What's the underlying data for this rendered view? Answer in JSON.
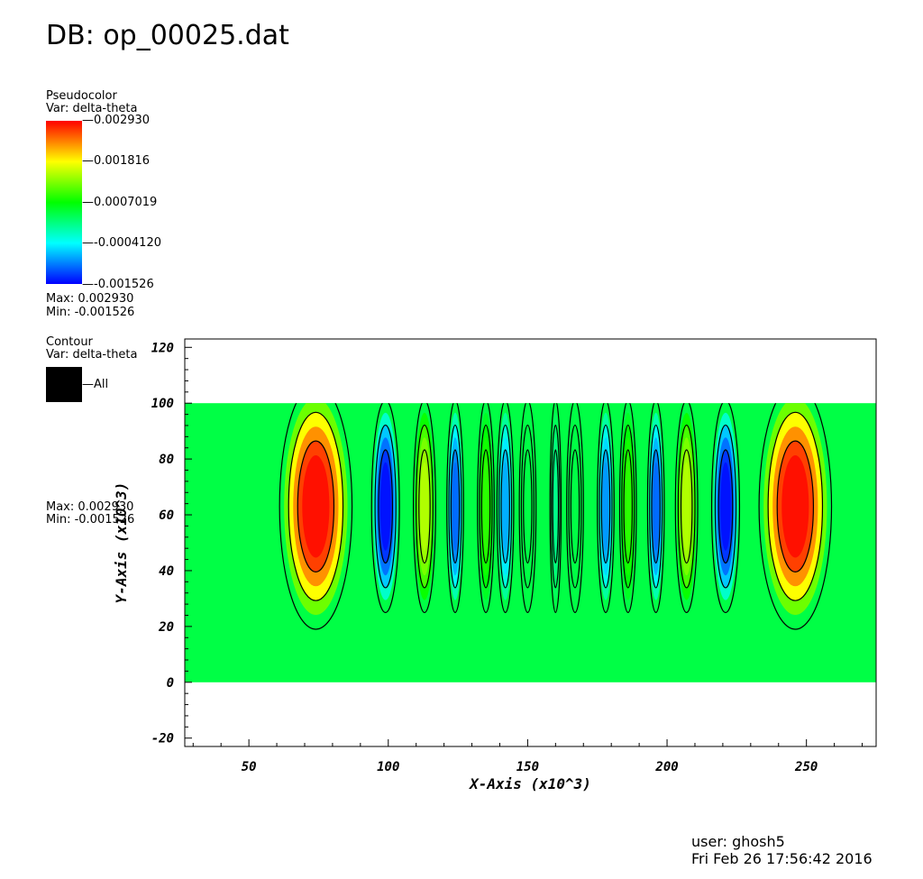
{
  "db_title": "DB: op_00025.dat",
  "pseudocolor": {
    "heading": "Pseudocolor",
    "var": "Var: delta-theta",
    "ticks": [
      "0.002930",
      "0.001816",
      "0.0007019",
      "-0.0004120",
      "-0.001526"
    ],
    "max": "Max:  0.002930",
    "min": "Min: -0.001526",
    "colors": [
      "#ff0000",
      "#ffff00",
      "#00ff00",
      "#00ffff",
      "#0000ff"
    ]
  },
  "contour": {
    "heading": "Contour",
    "var": "Var: delta-theta",
    "swatch_label": "All",
    "max": "Max:  0.002930",
    "min": "Min: -0.001526"
  },
  "footer": {
    "user": "user: ghosh5",
    "date": "Fri Feb 26 17:56:42 2016"
  },
  "chart_data": {
    "type": "heatmap",
    "xlabel": "X-Axis (x10^3)",
    "ylabel": "Y-Axis (x10^3)",
    "xlim": [
      27,
      275
    ],
    "ylim": [
      -23,
      123
    ],
    "data_x_range": [
      27,
      275
    ],
    "data_y_range": [
      0,
      100
    ],
    "x_ticks": [
      50,
      100,
      150,
      200,
      250
    ],
    "y_ticks": [
      -20,
      0,
      20,
      40,
      60,
      80,
      100,
      120
    ],
    "value_range": [
      -0.001526,
      0.00293
    ],
    "field_center_y": 63,
    "cells": [
      {
        "x": 74,
        "value": 0.00293,
        "width": 13
      },
      {
        "x": 99,
        "value": -0.0015,
        "width": 5
      },
      {
        "x": 113,
        "value": 0.0015,
        "width": 4
      },
      {
        "x": 124,
        "value": -0.0011,
        "width": 3
      },
      {
        "x": 135,
        "value": 0.0009,
        "width": 3
      },
      {
        "x": 142,
        "value": -0.0008,
        "width": 3
      },
      {
        "x": 150,
        "value": 0.0004,
        "width": 3
      },
      {
        "x": 160,
        "value": 0.0001,
        "width": 2
      },
      {
        "x": 167,
        "value": 0.0004,
        "width": 3
      },
      {
        "x": 178,
        "value": -0.0009,
        "width": 3
      },
      {
        "x": 186,
        "value": 0.0009,
        "width": 3
      },
      {
        "x": 196,
        "value": -0.0011,
        "width": 3
      },
      {
        "x": 207,
        "value": 0.0015,
        "width": 4
      },
      {
        "x": 221,
        "value": -0.0015,
        "width": 5
      },
      {
        "x": 246,
        "value": 0.00293,
        "width": 13
      }
    ]
  }
}
